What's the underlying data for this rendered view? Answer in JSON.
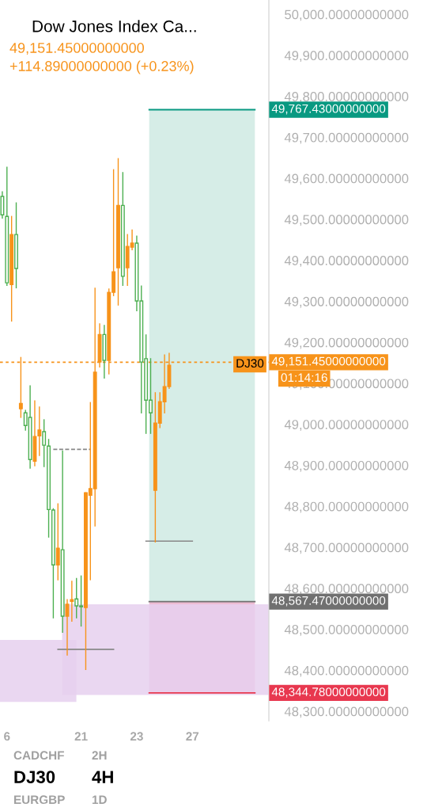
{
  "chart_data": {
    "type": "candlestick",
    "title": "Dow Jones Index Ca...",
    "annotations": [
      "49,151.45000000000",
      "+114.89000000000 (+0.23%)",
      "DJ30",
      "01:14:16",
      "CADCHF",
      "2H",
      "DJ30",
      "4H",
      "EURGBP",
      "1D"
    ],
    "categories": [
      null,
      "6",
      null,
      null,
      null,
      null,
      null,
      null,
      null,
      null,
      null,
      null,
      null,
      null,
      null,
      null,
      null,
      "21",
      null,
      null,
      null,
      null,
      null,
      null,
      null,
      null,
      null,
      null,
      null,
      "23",
      null,
      null,
      null,
      null,
      null,
      null,
      null,
      null,
      null,
      null,
      null,
      "27",
      null,
      null,
      null,
      null,
      null,
      null,
      null,
      null,
      null,
      null,
      null,
      null,
      null,
      null,
      null,
      null
    ],
    "ohlc": [
      [
        49556,
        49567,
        49503,
        49511
      ],
      [
        49507,
        49627,
        49339,
        49345
      ],
      [
        49341,
        49507,
        49252,
        49463
      ],
      [
        49463,
        49540,
        49333,
        49380
      ],
      [
        49038,
        49163,
        49017,
        49051
      ],
      [
        49028,
        49034,
        48986,
        48997
      ],
      [
        49017,
        49094,
        48893,
        48914
      ],
      [
        48910,
        49057,
        48899,
        48970
      ],
      [
        48972,
        49042,
        48924,
        48986
      ],
      [
        48982,
        49011,
        48897,
        48949
      ],
      [
        48947,
        48963,
        48725,
        48792
      ],
      [
        48791,
        48794,
        48528,
        48657
      ],
      [
        48657,
        48806,
        48621,
        48698
      ],
      [
        48694,
        48935,
        48493,
        48532
      ],
      [
        48532,
        48572,
        48437,
        48561
      ],
      [
        48568,
        48617,
        48520,
        48572
      ],
      [
        48574,
        48624,
        48528,
        48557
      ],
      [
        48557,
        48630,
        48508,
        48555
      ],
      [
        48553,
        48833,
        48402,
        48833
      ],
      [
        48827,
        49053,
        48621,
        48843
      ],
      [
        48843,
        49332,
        48752,
        49127
      ],
      [
        49152,
        49245,
        49140,
        49219
      ],
      [
        49219,
        49241,
        49113,
        49156
      ],
      [
        49156,
        49330,
        49123,
        49322
      ],
      [
        49322,
        49621,
        49314,
        49372
      ],
      [
        49382,
        49648,
        49291,
        49534
      ],
      [
        49534,
        49614,
        49339,
        49361
      ],
      [
        49382,
        49463,
        49339,
        49434
      ],
      [
        49432,
        49474,
        49426,
        49442
      ],
      [
        49442,
        49459,
        49277,
        49301
      ],
      [
        49301,
        49337,
        49028,
        49152
      ],
      [
        49160,
        49218,
        48978,
        49059
      ],
      [
        49059,
        49160,
        48978,
        49028
      ],
      [
        48839,
        49077,
        48713,
        49003
      ],
      [
        49003,
        49077,
        48992,
        49055
      ],
      [
        49055,
        49169,
        49028,
        49092
      ],
      [
        49092,
        49173,
        49088,
        49144
      ],
      null,
      null,
      null,
      null,
      null,
      null,
      null,
      null,
      null,
      null,
      null,
      null,
      null,
      null,
      null,
      null,
      null,
      null,
      null,
      null,
      null
    ],
    "colors": [
      "#4caf50",
      "#4caf50",
      "#f7931a",
      "#4caf50",
      "#f7931a",
      "#4caf50",
      "#4caf50",
      "#f7931a",
      "#f7931a",
      "#4caf50",
      "#4caf50",
      "#4caf50",
      "#f7931a",
      "#4caf50",
      "#f7931a",
      "#f7931a",
      "#4caf50",
      "#4caf50",
      "#f7931a",
      "#f7931a",
      "#f7931a",
      "#f7931a",
      "#4caf50",
      "#f7931a",
      "#f7931a",
      "#f7931a",
      "#4caf50",
      "#f7931a",
      "#f7931a",
      "#4caf50",
      "#4caf50",
      "#4caf50",
      "#4caf50",
      "#f7931a",
      "#f7931a",
      "#f7931a",
      "#f7931a",
      null,
      null,
      null,
      null,
      null,
      null,
      null,
      null,
      null,
      null,
      null,
      null,
      null,
      null,
      null,
      null,
      null,
      null,
      null,
      null,
      null
    ],
    "series": [
      {
        "type": "line",
        "color": "#888888",
        "line_style": "dashed",
        "values": [
          null,
          null,
          null,
          null,
          null,
          null,
          null,
          null,
          null,
          null,
          null,
          48939,
          48939,
          48939,
          48939,
          48939,
          48939,
          48939,
          48939,
          48939,
          null,
          null,
          null,
          null,
          null,
          null,
          null,
          null,
          null,
          null,
          null,
          null,
          null,
          null,
          null,
          null,
          null,
          null,
          null,
          null,
          null,
          null,
          null,
          null,
          null,
          null,
          null,
          null,
          null,
          null,
          null,
          null,
          null,
          null,
          null,
          null,
          null,
          null
        ]
      },
      {
        "type": "line",
        "color": "#888888",
        "line_style": "solid",
        "values": [
          null,
          null,
          null,
          null,
          null,
          null,
          null,
          null,
          null,
          null,
          null,
          null,
          null,
          null,
          null,
          null,
          null,
          null,
          null,
          null,
          null,
          null,
          null,
          null,
          null,
          null,
          null,
          null,
          null,
          null,
          null,
          48715,
          48715,
          48715,
          48715,
          48715,
          48715,
          48715,
          48715,
          48715,
          48715,
          48715,
          null,
          null,
          null,
          null,
          null,
          null,
          null,
          null,
          null,
          null,
          null,
          null,
          null,
          null,
          null,
          null
        ]
      },
      {
        "type": "line",
        "color": "#888888",
        "line_style": "solid",
        "values": [
          null,
          null,
          null,
          null,
          null,
          null,
          null,
          null,
          null,
          null,
          null,
          null,
          48451,
          48451,
          48451,
          48451,
          48451,
          48451,
          48451,
          48451,
          48451,
          48451,
          48451,
          48451,
          48451,
          null,
          null,
          null,
          null,
          null,
          null,
          null,
          null,
          null,
          null,
          null,
          null,
          null,
          null,
          null,
          null,
          null,
          null,
          null,
          null,
          null,
          null,
          null,
          null,
          null,
          null,
          null,
          null,
          null,
          null,
          null,
          null,
          null
        ]
      }
    ],
    "bands": [
      {
        "axis": "y",
        "from": 48567.47,
        "to": 49767.43,
        "color": "#cfeae3"
      },
      {
        "axis": "y",
        "from": 48344.78,
        "to": 48567.47,
        "color": "#ebb0cd"
      },
      {
        "axis": "y",
        "from": 48340,
        "to": 48561,
        "color": "#e6d0ee"
      },
      {
        "axis": "y",
        "from": 48323,
        "to": 48474,
        "color": "#e6d0ee"
      }
    ],
    "ref_lines": [
      {
        "axis": "y",
        "value": 49767.43,
        "label": "49,767.43000000000",
        "color": "#089981",
        "line_style": "solid"
      },
      {
        "axis": "y",
        "value": 49151.45,
        "label": "49,151.45000000000",
        "color": "#f7931a",
        "line_style": "dotted"
      },
      {
        "axis": "y",
        "value": 48567.47,
        "label": "48,567.47000000000",
        "color": "#707070",
        "line_style": "solid"
      },
      {
        "axis": "y",
        "value": 48344.78,
        "label": "48,344.78000000000",
        "color": "#e8384f",
        "line_style": "solid"
      }
    ],
    "ylim": [
      48277,
      50035
    ],
    "yticks": [
      {
        "value": 48300,
        "label": "48,300.00000000000"
      },
      {
        "value": 48400,
        "label": "48,400.00000000000"
      },
      {
        "value": 48500,
        "label": "48,500.00000000000"
      },
      {
        "value": 48600,
        "label": "48,600.00000000000"
      },
      {
        "value": 48700,
        "label": "48,700.00000000000"
      },
      {
        "value": 48800,
        "label": "48,800.00000000000"
      },
      {
        "value": 48900,
        "label": "48,900.00000000000"
      },
      {
        "value": 49000,
        "label": "49,000.00000000000"
      },
      {
        "value": 49100,
        "label": "49,100.00000000000"
      },
      {
        "value": 49200,
        "label": "49,200.00000000000"
      },
      {
        "value": 49300,
        "label": "49,300.00000000000"
      },
      {
        "value": 49400,
        "label": "49,400.00000000000"
      },
      {
        "value": 49500,
        "label": "49,500.00000000000"
      },
      {
        "value": 49600,
        "label": "49,600.00000000000"
      },
      {
        "value": 49700,
        "label": "49,700.00000000000"
      },
      {
        "value": 49800,
        "label": "49,800.00000000000"
      },
      {
        "value": 49900,
        "label": "49,900.00000000000"
      },
      {
        "value": 50000,
        "label": "50,000.00000000000"
      }
    ],
    "grid": false,
    "legend": false
  }
}
